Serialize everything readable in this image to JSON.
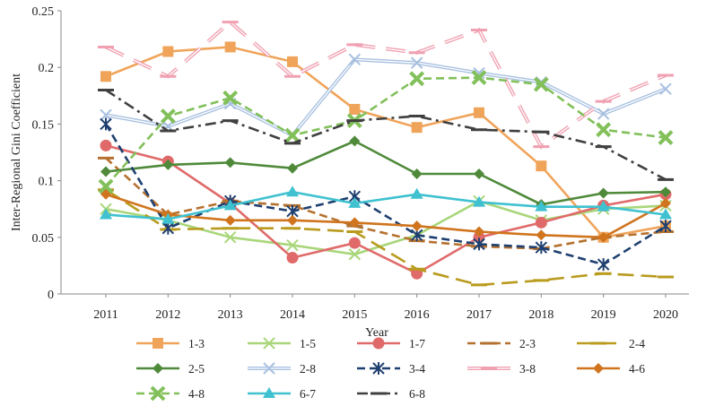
{
  "chart_data": {
    "type": "line",
    "title": "",
    "xlabel": "Year",
    "ylabel": "Inter-Regional Gini Coefficient",
    "x": [
      2011,
      2012,
      2013,
      2014,
      2015,
      2016,
      2017,
      2018,
      2019,
      2020
    ],
    "xticks": [
      "2011",
      "2012",
      "2013",
      "2014",
      "2015",
      "2016",
      "2017",
      "2018",
      "2019",
      "2020"
    ],
    "yticks": [
      "0",
      "0.05",
      "0.1",
      "0.15",
      "0.2",
      "0.25"
    ],
    "ylim": [
      0,
      0.25
    ],
    "grid": false,
    "legend_position": "bottom",
    "series": [
      {
        "name": "1-3",
        "color": "#f0a45a",
        "marker": "square",
        "dash": "solid",
        "values": [
          0.192,
          0.214,
          0.218,
          0.205,
          0.163,
          0.147,
          0.16,
          0.113,
          0.05,
          0.06
        ]
      },
      {
        "name": "1-5",
        "color": "#a9d67a",
        "marker": "x",
        "dash": "solid",
        "values": [
          0.075,
          0.065,
          0.05,
          0.043,
          0.035,
          0.052,
          0.082,
          0.065,
          0.075,
          0.078
        ]
      },
      {
        "name": "1-7",
        "color": "#e06a6a",
        "marker": "circle",
        "dash": "solid",
        "values": [
          0.131,
          0.117,
          0.08,
          0.032,
          0.045,
          0.018,
          0.05,
          0.063,
          0.078,
          0.088
        ]
      },
      {
        "name": "2-3",
        "color": "#b5712f",
        "marker": "dash",
        "dash": "dash",
        "values": [
          0.12,
          0.07,
          0.082,
          0.078,
          0.06,
          0.047,
          0.042,
          0.04,
          0.05,
          0.055
        ]
      },
      {
        "name": "2-4",
        "color": "#b99b1e",
        "marker": "dash",
        "dash": "longdash",
        "values": [
          0.092,
          0.057,
          0.058,
          0.058,
          0.055,
          0.022,
          0.008,
          0.012,
          0.018,
          0.015
        ]
      },
      {
        "name": "2-5",
        "color": "#4f8a3a",
        "marker": "diamond",
        "dash": "solid",
        "values": [
          0.108,
          0.114,
          0.116,
          0.111,
          0.135,
          0.106,
          0.106,
          0.079,
          0.089,
          0.09
        ]
      },
      {
        "name": "2-8",
        "color": "#a8c0e0",
        "marker": "x",
        "dash": "double",
        "values": [
          0.158,
          0.148,
          0.168,
          0.14,
          0.207,
          0.204,
          0.195,
          0.187,
          0.159,
          0.181
        ]
      },
      {
        "name": "3-4",
        "color": "#1e3f6f",
        "marker": "star",
        "dash": "dash",
        "values": [
          0.15,
          0.058,
          0.082,
          0.073,
          0.086,
          0.052,
          0.044,
          0.041,
          0.026,
          0.06
        ]
      },
      {
        "name": "3-8",
        "color": "#f0a0b0",
        "marker": "dash",
        "dash": "double-dash",
        "values": [
          0.218,
          0.192,
          0.24,
          0.192,
          0.22,
          0.213,
          0.233,
          0.13,
          0.17,
          0.193
        ]
      },
      {
        "name": "4-6",
        "color": "#d0741e",
        "marker": "diamond",
        "dash": "solid",
        "values": [
          0.088,
          0.07,
          0.065,
          0.065,
          0.063,
          0.06,
          0.055,
          0.052,
          0.05,
          0.08
        ]
      },
      {
        "name": "4-8",
        "color": "#82c05a",
        "marker": "bigx",
        "dash": "dash",
        "values": [
          0.095,
          0.157,
          0.173,
          0.14,
          0.153,
          0.19,
          0.191,
          0.185,
          0.145,
          0.138
        ]
      },
      {
        "name": "6-7",
        "color": "#3fc1d0",
        "marker": "triangle",
        "dash": "solid",
        "values": [
          0.07,
          0.066,
          0.078,
          0.09,
          0.08,
          0.088,
          0.081,
          0.077,
          0.077,
          0.07
        ]
      },
      {
        "name": "6-8",
        "color": "#404040",
        "marker": "dash",
        "dash": "dashdot",
        "values": [
          0.18,
          0.144,
          0.153,
          0.133,
          0.153,
          0.157,
          0.145,
          0.143,
          0.13,
          0.101
        ]
      }
    ]
  }
}
